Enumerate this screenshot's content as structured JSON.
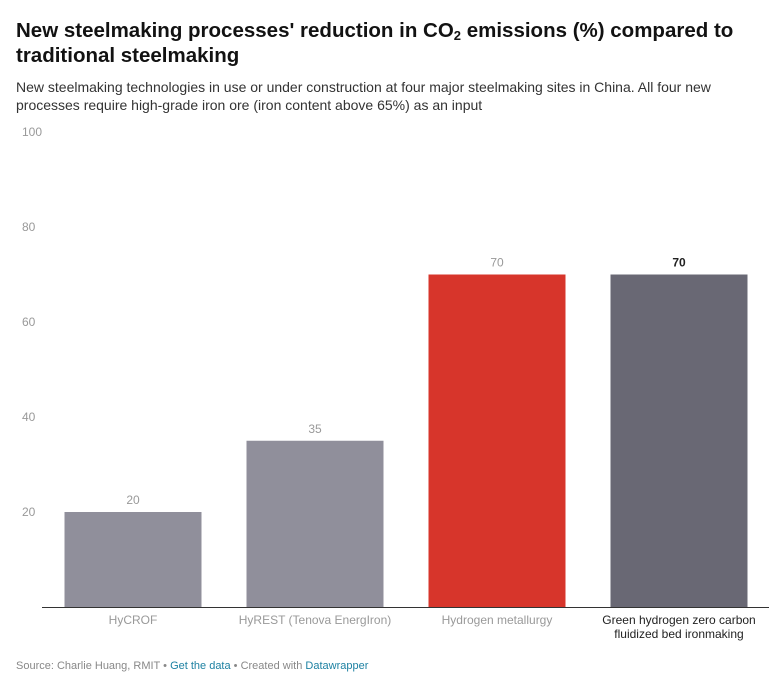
{
  "header": {
    "title_main": "New steelmaking processes' reduction in CO",
    "title_sub": "2",
    "title_rest": " emissions (%) compared to traditional steelmaking",
    "subtitle": "New steelmaking technologies in use or under construction at four major steelmaking sites in China. All four new processes require high-grade iron ore (iron content above 65%) as an input"
  },
  "chart_data": {
    "type": "bar",
    "title": "New steelmaking processes' reduction in CO2 emissions (%) compared to traditional steelmaking",
    "categories": [
      "HyCROF",
      "HyREST (Tenova EnergIron)",
      "Hydrogen metallurgy",
      "Green hydrogen zero carbon fluidized bed ironmaking"
    ],
    "category_lines": [
      [
        "HyCROF"
      ],
      [
        "HyREST (Tenova EnergIron)"
      ],
      [
        "Hydrogen metallurgy"
      ],
      [
        "Green hydrogen zero carbon",
        "fluidized bed ironmaking"
      ]
    ],
    "values": [
      20,
      35,
      70,
      70
    ],
    "value_labels": [
      "20",
      "35",
      "70",
      "70"
    ],
    "bar_colors": [
      "#908f9b",
      "#908f9b",
      "#d7352b",
      "#696874"
    ],
    "highlighted": [
      false,
      false,
      false,
      true
    ],
    "ylim": [
      0,
      100
    ],
    "yticks": [
      20,
      40,
      60,
      80,
      100
    ],
    "ytick_labels": [
      "20",
      "40",
      "60",
      "80",
      "100"
    ],
    "xlabel": "",
    "ylabel": "",
    "grid": false
  },
  "footer": {
    "source": "Source: Charlie Huang, RMIT",
    "separator": " • ",
    "get_data": "Get the data",
    "created_with": "Created with ",
    "tool": "Datawrapper"
  }
}
